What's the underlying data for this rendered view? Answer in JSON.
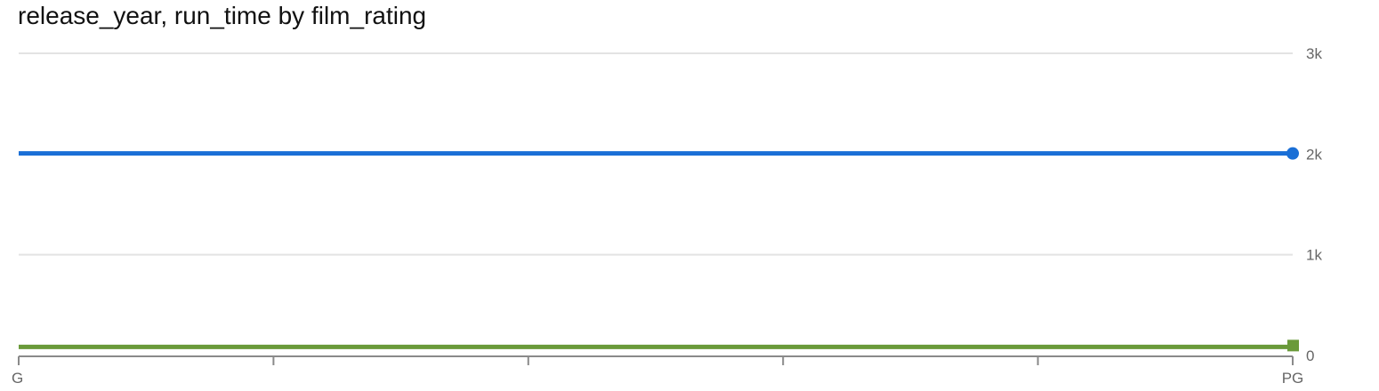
{
  "chart_data": {
    "type": "line",
    "title": "release_year, run_time by film_rating",
    "categories": [
      "G",
      "PG"
    ],
    "x_tick_count": 6,
    "y_ticks": [
      0,
      1000,
      2000,
      3000
    ],
    "y_tick_labels": [
      "0",
      "1k",
      "2k",
      "3k"
    ],
    "ylim": [
      0,
      3000
    ],
    "y_axis_side": "right",
    "grid": true,
    "legend": "none",
    "series": [
      {
        "values": [
          2006,
          2006
        ],
        "color": "#1a6fd6",
        "marker": "circle"
      },
      {
        "values": [
          85,
          85
        ],
        "color": "#6a9a3a",
        "marker": "square"
      }
    ]
  }
}
